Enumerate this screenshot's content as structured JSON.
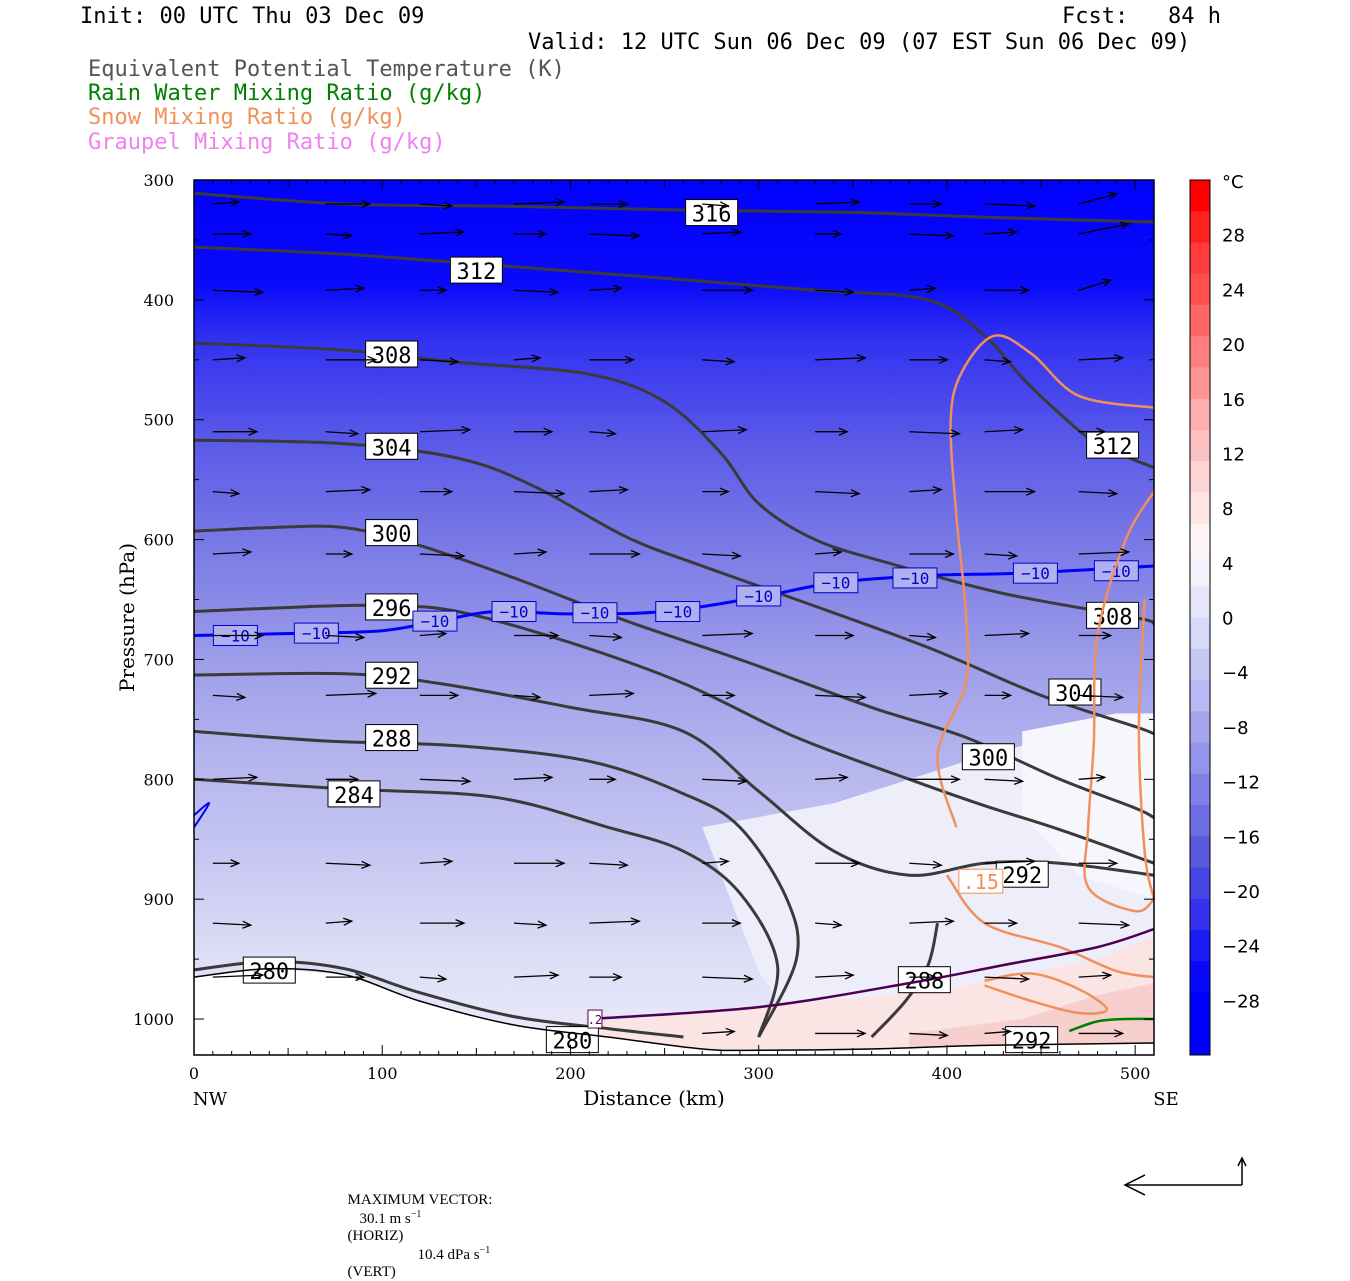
{
  "header": {
    "init": "Init: 00 UTC Thu 03 Dec 09",
    "fcst": "Fcst:   84 h",
    "valid": "Valid: 12 UTC Sun 06 Dec 09 (07 EST Sun 06 Dec 09)"
  },
  "legend": [
    {
      "label": "Equivalent Potential Temperature (K)",
      "color": "#555555"
    },
    {
      "label": "Rain Water Mixing Ratio (g/kg)",
      "color": "#008000"
    },
    {
      "label": "Snow Mixing Ratio (g/kg)",
      "color": "#f0905a"
    },
    {
      "label": "Graupel Mixing Ratio (g/kg)",
      "color": "#ee82ee"
    }
  ],
  "chart_data": {
    "type": "heatmap",
    "title": "",
    "xlabel": "Distance (km)",
    "ylabel": "Pressure (hPa)",
    "xlim": [
      0,
      510
    ],
    "ylim": [
      300,
      1030
    ],
    "x_ticks": [
      0,
      100,
      200,
      300,
      400,
      500
    ],
    "y_ticks": [
      300,
      400,
      500,
      600,
      700,
      800,
      900,
      1000
    ],
    "x_end_labels": {
      "left": "NW",
      "right": "SE"
    },
    "colorbar": {
      "unit": "°C",
      "tick_labels": [
        "28",
        "24",
        "20",
        "16",
        "12",
        "8",
        "4",
        "0",
        "−4",
        "−8",
        "−12",
        "−16",
        "−20",
        "−24",
        "−28"
      ],
      "range": [
        -32,
        32
      ]
    },
    "theta_e_contours": [
      {
        "label": "316",
        "points": [
          [
            0,
            311
          ],
          [
            80,
            320
          ],
          [
            170,
            322
          ],
          [
            260,
            325
          ],
          [
            350,
            327
          ],
          [
            420,
            331
          ],
          [
            510,
            335
          ]
        ]
      },
      {
        "label": "312",
        "points": [
          [
            0,
            356
          ],
          [
            80,
            362
          ],
          [
            150,
            370
          ],
          [
            250,
            382
          ],
          [
            330,
            392
          ],
          [
            390,
            400
          ],
          [
            420,
            430
          ],
          [
            440,
            465
          ],
          [
            460,
            495
          ],
          [
            480,
            520
          ],
          [
            510,
            540
          ]
        ]
      },
      {
        "label": "308",
        "points": [
          [
            0,
            436
          ],
          [
            80,
            442
          ],
          [
            140,
            452
          ],
          [
            210,
            462
          ],
          [
            250,
            485
          ],
          [
            280,
            528
          ],
          [
            300,
            570
          ],
          [
            330,
            600
          ],
          [
            370,
            620
          ],
          [
            430,
            645
          ],
          [
            500,
            665
          ],
          [
            510,
            670
          ]
        ]
      },
      {
        "label": "304",
        "points": [
          [
            0,
            517
          ],
          [
            80,
            520
          ],
          [
            140,
            532
          ],
          [
            180,
            555
          ],
          [
            230,
            598
          ],
          [
            270,
            622
          ],
          [
            320,
            650
          ],
          [
            390,
            690
          ],
          [
            450,
            730
          ],
          [
            500,
            756
          ],
          [
            510,
            762
          ]
        ]
      },
      {
        "label": "300",
        "points": [
          [
            0,
            593
          ],
          [
            40,
            590
          ],
          [
            80,
            590
          ],
          [
            120,
            605
          ],
          [
            170,
            632
          ],
          [
            230,
            668
          ],
          [
            290,
            700
          ],
          [
            360,
            740
          ],
          [
            410,
            765
          ],
          [
            460,
            800
          ],
          [
            500,
            824
          ],
          [
            510,
            832
          ]
        ]
      },
      {
        "label": "296",
        "points": [
          [
            0,
            660
          ],
          [
            60,
            656
          ],
          [
            100,
            655
          ],
          [
            140,
            660
          ],
          [
            200,
            686
          ],
          [
            260,
            720
          ],
          [
            320,
            765
          ],
          [
            380,
            800
          ],
          [
            420,
            822
          ],
          [
            460,
            842
          ],
          [
            510,
            870
          ]
        ]
      },
      {
        "label": "292",
        "points": [
          [
            0,
            713
          ],
          [
            80,
            712
          ],
          [
            130,
            720
          ],
          [
            200,
            740
          ],
          [
            260,
            760
          ],
          [
            300,
            810
          ],
          [
            340,
            860
          ],
          [
            380,
            880
          ],
          [
            420,
            870
          ],
          [
            460,
            870
          ],
          [
            510,
            880
          ]
        ]
      },
      {
        "label": "288",
        "points": [
          [
            0,
            760
          ],
          [
            70,
            768
          ],
          [
            140,
            772
          ],
          [
            210,
            785
          ],
          [
            260,
            812
          ],
          [
            290,
            840
          ],
          [
            315,
            900
          ],
          [
            320,
            950
          ],
          [
            300,
            1015
          ]
        ]
      },
      {
        "label": "284",
        "points": [
          [
            0,
            800
          ],
          [
            80,
            808
          ],
          [
            160,
            815
          ],
          [
            220,
            840
          ],
          [
            260,
            860
          ],
          [
            290,
            895
          ],
          [
            310,
            955
          ],
          [
            300,
            1015
          ]
        ]
      },
      {
        "label": "288b",
        "points": [
          [
            360,
            1015
          ],
          [
            378,
            985
          ],
          [
            390,
            955
          ],
          [
            395,
            920
          ]
        ]
      },
      {
        "label": "280",
        "points": [
          [
            0,
            959
          ],
          [
            40,
            952
          ],
          [
            80,
            958
          ],
          [
            120,
            978
          ],
          [
            170,
            998
          ],
          [
            220,
            1008
          ],
          [
            260,
            1015
          ]
        ]
      }
    ],
    "isotherm_minus10": {
      "label": "−10",
      "points": [
        [
          0,
          680
        ],
        [
          60,
          678
        ],
        [
          100,
          676
        ],
        [
          130,
          668
        ],
        [
          160,
          660
        ],
        [
          200,
          662
        ],
        [
          250,
          660
        ],
        [
          300,
          648
        ],
        [
          340,
          636
        ],
        [
          390,
          630
        ],
        [
          440,
          628
        ],
        [
          510,
          622
        ]
      ]
    },
    "snow_mixing_label": ".15",
    "graupel_label": ".2",
    "wind_label_positions_note": "",
    "footer": {
      "max_vector_label": "MAXIMUM VECTOR:",
      "horiz_value": "30.1 m s",
      "horiz_exp": "−1",
      "horiz_unit": "(HORIZ)",
      "vert_value": "10.4 dPa s",
      "vert_exp": "−1",
      "vert_unit": "(VERT)"
    }
  }
}
